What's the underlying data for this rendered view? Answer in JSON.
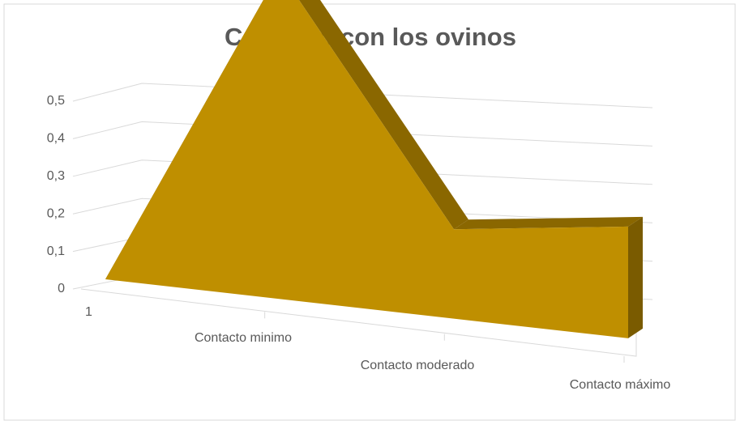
{
  "chart_data": {
    "type": "area3d",
    "title": "Contacto con los ovinos",
    "categories": [
      "1",
      "Contacto minimo",
      "Contacto moderado",
      "Contacto máximo"
    ],
    "values": [
      0,
      0.44,
      0.12,
      0.15
    ],
    "color": "#bf8f00",
    "ylim": [
      0,
      0.5
    ],
    "yticks": [
      0,
      {
        "value": 0.1,
        "label": "0,1"
      },
      {
        "value": 0.2,
        "label": "0,2"
      },
      {
        "value": 0.3,
        "label": "0,3"
      },
      {
        "value": 0.4,
        "label": "0,4"
      },
      {
        "value": 0.5,
        "label": "0,5"
      }
    ],
    "grid": true
  }
}
